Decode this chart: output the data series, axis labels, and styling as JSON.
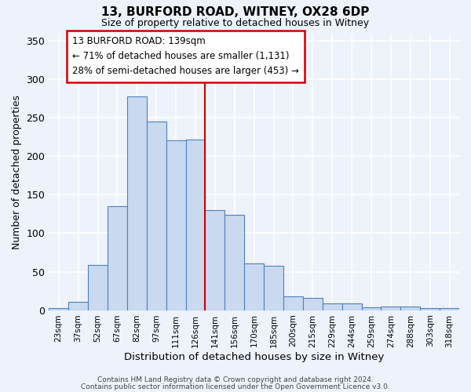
{
  "title": "13, BURFORD ROAD, WITNEY, OX28 6DP",
  "subtitle": "Size of property relative to detached houses in Witney",
  "xlabel": "Distribution of detached houses by size in Witney",
  "ylabel": "Number of detached properties",
  "bin_labels": [
    "23sqm",
    "37sqm",
    "52sqm",
    "67sqm",
    "82sqm",
    "97sqm",
    "111sqm",
    "126sqm",
    "141sqm",
    "156sqm",
    "170sqm",
    "185sqm",
    "200sqm",
    "215sqm",
    "229sqm",
    "244sqm",
    "259sqm",
    "274sqm",
    "288sqm",
    "303sqm",
    "318sqm"
  ],
  "bar_heights": [
    3,
    11,
    59,
    135,
    278,
    245,
    221,
    222,
    130,
    124,
    61,
    58,
    18,
    16,
    9,
    9,
    4,
    5,
    5,
    3,
    3
  ],
  "bar_color": "#c9d9f0",
  "bar_edge_color": "#5080c0",
  "vline_color": "#cc0000",
  "annotation_line1": "13 BURFORD ROAD: 139sqm",
  "annotation_line2": "← 71% of detached houses are smaller (1,131)",
  "annotation_line3": "28% of semi-detached houses are larger (453) →",
  "annotation_box_color": "#ffffff",
  "annotation_box_edge_color": "#cc0000",
  "ylim": [
    0,
    360
  ],
  "yticks": [
    0,
    50,
    100,
    150,
    200,
    250,
    300,
    350
  ],
  "background_color": "#eef2fb",
  "grid_color": "#ffffff",
  "footer_line1": "Contains HM Land Registry data © Crown copyright and database right 2024.",
  "footer_line2": "Contains public sector information licensed under the Open Government Licence v3.0."
}
